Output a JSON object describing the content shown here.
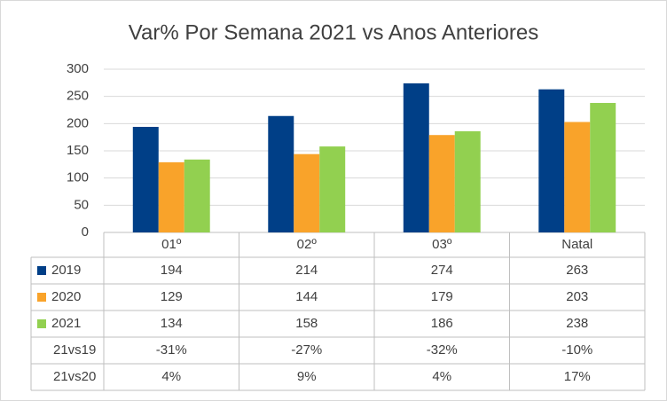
{
  "chart_data": {
    "type": "bar",
    "title": "Var% Por Semana 2021 vs Anos Anteriores",
    "categories": [
      "01º",
      "02º",
      "03º",
      "Natal"
    ],
    "series": [
      {
        "name": "2019",
        "color": "#003f87",
        "values": [
          194,
          214,
          274,
          263
        ]
      },
      {
        "name": "2020",
        "color": "#f9a32a",
        "values": [
          129,
          144,
          179,
          203
        ]
      },
      {
        "name": "2021",
        "color": "#92d050",
        "values": [
          134,
          158,
          186,
          238
        ]
      }
    ],
    "table_rows": [
      {
        "name": "21vs19",
        "values": [
          -31,
          -27,
          -32,
          -10
        ],
        "value_labels": [
          "-31%",
          "-27%",
          "-32%",
          "-10%"
        ]
      },
      {
        "name": "21vs20",
        "values": [
          4,
          9,
          4,
          17
        ],
        "value_labels": [
          "4%",
          "9%",
          "4%",
          "17%"
        ]
      }
    ],
    "ylim": [
      0,
      300
    ],
    "yticks": [
      0,
      50,
      100,
      150,
      200,
      250,
      300
    ],
    "grid": true
  }
}
